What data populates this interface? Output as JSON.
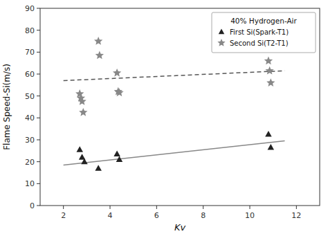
{
  "chart_data": {
    "type": "scatter",
    "xlabel": "Kv",
    "ylabel": "Flame Speed-Si(m/s)",
    "legend_title": "40% Hydrogen-Air",
    "legend": "upper-right",
    "xlim": [
      1,
      13
    ],
    "ylim": [
      0,
      90
    ],
    "xticks": [
      2,
      4,
      6,
      8,
      10,
      12
    ],
    "yticks": [
      0,
      10,
      20,
      30,
      40,
      50,
      60,
      70,
      80,
      90
    ],
    "series": [
      {
        "name": "First Si(Spark-T1)",
        "type": "scatter",
        "marker": "triangle",
        "color": "#222222",
        "x": [
          2.7,
          2.8,
          2.9,
          3.5,
          4.3,
          4.4,
          10.8,
          10.9
        ],
        "values": [
          25.5,
          22.0,
          20.0,
          17.0,
          23.5,
          21.0,
          32.5,
          26.5
        ]
      },
      {
        "name": "Second Si(T2-T1)",
        "type": "scatter",
        "marker": "star",
        "color": "#888888",
        "x": [
          2.7,
          2.75,
          2.8,
          2.85,
          3.5,
          3.55,
          4.3,
          4.35,
          4.4,
          10.8,
          10.85,
          10.9
        ],
        "values": [
          51.0,
          49.0,
          47.5,
          42.5,
          75.0,
          68.5,
          60.5,
          52.0,
          51.5,
          66.0,
          61.5,
          56.0
        ]
      },
      {
        "type": "line",
        "line_style": "solid",
        "color": "#888888",
        "x": [
          2.0,
          11.5
        ],
        "values": [
          18.5,
          29.5
        ]
      },
      {
        "type": "line",
        "line_style": "dashed",
        "color": "#555555",
        "x": [
          2.0,
          11.5
        ],
        "values": [
          57.0,
          61.5
        ]
      }
    ]
  }
}
